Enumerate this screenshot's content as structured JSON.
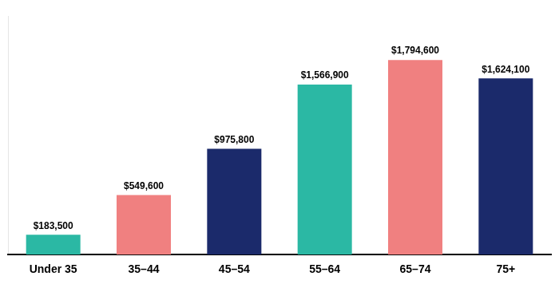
{
  "chart_data": {
    "type": "bar",
    "categories": [
      "Under 35",
      "35–44",
      "45–54",
      "55–64",
      "65–74",
      "75+"
    ],
    "values": [
      183500,
      549600,
      975800,
      1566900,
      1794600,
      1624100
    ],
    "value_labels": [
      "$183,500",
      "$549,600",
      "$975,800",
      "$1,566,900",
      "$1,794,600",
      "$1,624,100"
    ],
    "colors": [
      "#2BB8A4",
      "#F08080",
      "#1B2A6B",
      "#2BB8A4",
      "#F08080",
      "#1B2A6B"
    ],
    "ylim": [
      0,
      2200000
    ],
    "data_labels": true,
    "tick_labels": "x",
    "grid": false
  }
}
